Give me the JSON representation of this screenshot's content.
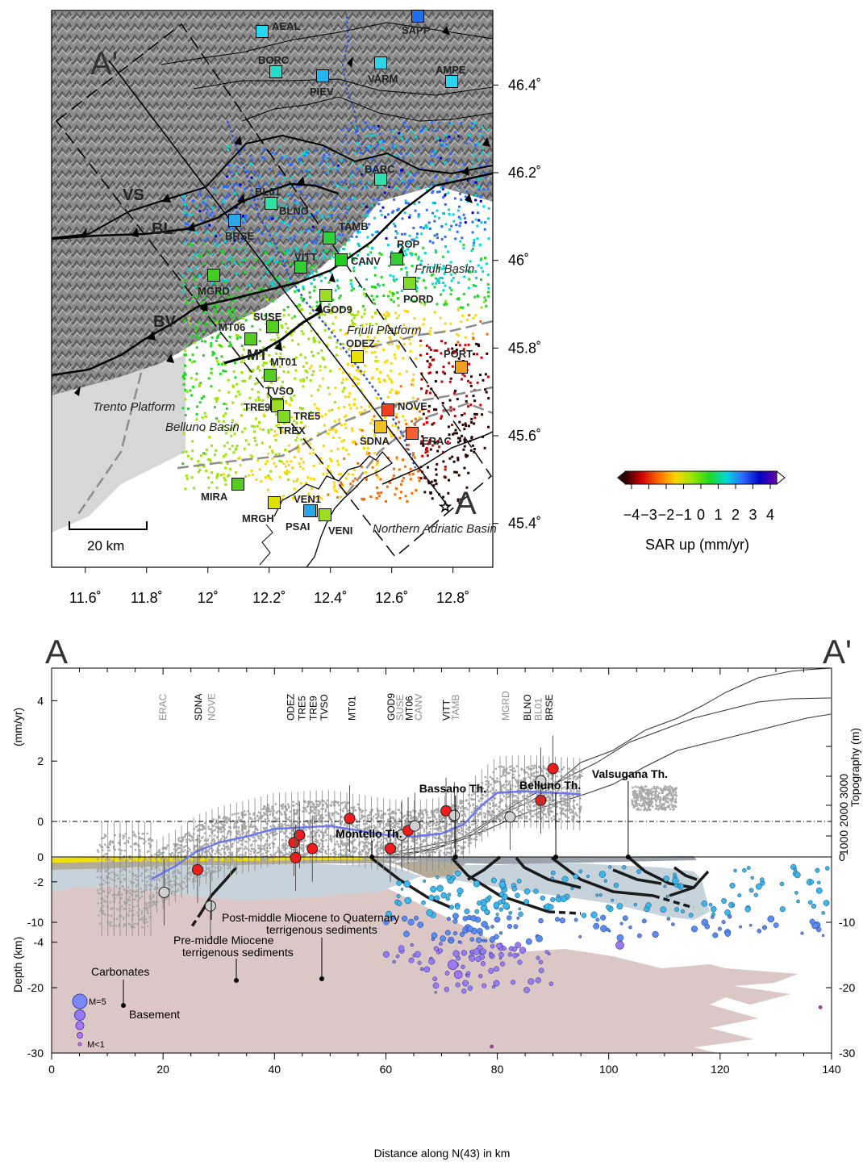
{
  "chart_data": [
    {
      "type": "scatter",
      "panel": "map",
      "x_ticks": [
        "11.6˚",
        "11.8˚",
        "12˚",
        "12.2˚",
        "12.4˚",
        "12.6˚",
        "12.8˚"
      ],
      "x_tick_values": [
        11.6,
        11.8,
        12.0,
        12.2,
        12.4,
        12.6,
        12.8
      ],
      "y_ticks": [
        "46.4˚",
        "46.2˚",
        "46˚",
        "45.8˚",
        "45.6˚",
        "45.4˚"
      ],
      "y_tick_values": [
        46.4,
        46.2,
        46.0,
        45.8,
        45.6,
        45.4
      ],
      "xlim": [
        11.49,
        12.93
      ],
      "ylim": [
        45.3,
        46.57
      ],
      "scale_bar": "20 km",
      "profile_ends": [
        "A'",
        "A"
      ],
      "colorbar": {
        "ticks": [
          "−4",
          "−3",
          "−2",
          "−1",
          "0",
          "1",
          "2",
          "3",
          "4"
        ],
        "label": "SAR up (mm/yr)",
        "colors": [
          "#2b0000",
          "#d10000",
          "#ff6a00",
          "#ffd500",
          "#99e600",
          "#1fd81f",
          "#00d8d8",
          "#2f6bff",
          "#0000c8",
          "#6a00a8"
        ]
      },
      "fault_labels": [
        "VS",
        "BL",
        "BV",
        "MT"
      ],
      "region_labels": [
        "Trento Platform",
        "Belluno Basin",
        "Friuli Platform",
        "Friuli Basin",
        "Northern Adriatic Basin"
      ],
      "stations": [
        {
          "name": "AEAL",
          "x": 12.19,
          "y": 46.53,
          "color": "#25d8f0"
        },
        {
          "name": "SAPP",
          "x": 12.7,
          "y": 46.56,
          "color": "#1f6fe8"
        },
        {
          "name": "BORC",
          "x": 12.24,
          "y": 46.44,
          "color": "#2bd9c9"
        },
        {
          "name": "VARM",
          "x": 12.57,
          "y": 46.46,
          "color": "#2bd5e6"
        },
        {
          "name": "PIEV",
          "x": 12.39,
          "y": 46.43,
          "color": "#22b7f0"
        },
        {
          "name": "AMPE",
          "x": 12.8,
          "y": 46.42,
          "color": "#2bd5f0"
        },
        {
          "name": "BARC",
          "x": 12.57,
          "y": 46.19,
          "color": "#2ee0b0"
        },
        {
          "name": "BL01",
          "x": 12.23,
          "y": 46.14,
          "color": "#2fe0a5"
        },
        {
          "name": "BLNO",
          "x": 12.23,
          "y": 46.14,
          "color": "#2fe0a5"
        },
        {
          "name": "BRSE",
          "x": 12.09,
          "y": 46.1,
          "color": "#2ba6e8"
        },
        {
          "name": "TAMB",
          "x": 12.4,
          "y": 46.06,
          "color": "#2ed13a"
        },
        {
          "name": "ROP",
          "x": 12.62,
          "y": 46.01,
          "color": "#33cc33"
        },
        {
          "name": "VITT",
          "x": 12.3,
          "y": 45.99,
          "color": "#33cc33"
        },
        {
          "name": "CANV",
          "x": 12.44,
          "y": 46.01,
          "color": "#22cc22"
        },
        {
          "name": "MGRD",
          "x": 12.02,
          "y": 45.97,
          "color": "#44cc22"
        },
        {
          "name": "PORD",
          "x": 12.67,
          "y": 45.96,
          "color": "#7fdc22"
        },
        {
          "name": "GOD9",
          "x": 12.37,
          "y": 45.93,
          "color": "#9bdc22"
        },
        {
          "name": "SUSE",
          "x": 12.22,
          "y": 45.86,
          "color": "#55cc22"
        },
        {
          "name": "MT06",
          "x": 12.14,
          "y": 45.83,
          "color": "#55cc22"
        },
        {
          "name": "ODEZ",
          "x": 12.49,
          "y": 45.79,
          "color": "#e8e000"
        },
        {
          "name": "PORT",
          "x": 12.84,
          "y": 45.77,
          "color": "#f0a020"
        },
        {
          "name": "MT01",
          "x": 12.21,
          "y": 45.75,
          "color": "#55cc22"
        },
        {
          "name": "TVSO",
          "x": 12.23,
          "y": 45.68,
          "color": "#b0e000"
        },
        {
          "name": "TRE5",
          "x": 12.24,
          "y": 45.67,
          "color": "#7fdc22"
        },
        {
          "name": "TRE9",
          "x": 12.22,
          "y": 45.67,
          "color": "#9edc22"
        },
        {
          "name": "TREX",
          "x": 12.25,
          "y": 45.65,
          "color": "#7fdc22"
        },
        {
          "name": "NOVE",
          "x": 12.59,
          "y": 45.67,
          "color": "#f04020"
        },
        {
          "name": "SDNA",
          "x": 12.58,
          "y": 45.63,
          "color": "#f0c020"
        },
        {
          "name": "ERAC",
          "x": 12.67,
          "y": 45.62,
          "color": "#f06030"
        },
        {
          "name": "MIRA",
          "x": 12.1,
          "y": 45.49,
          "color": "#55cc22"
        },
        {
          "name": "VEN1",
          "x": 12.35,
          "y": 45.43,
          "color": "#f0c020"
        },
        {
          "name": "MRGH",
          "x": 12.22,
          "y": 45.46,
          "color": "#e0e000"
        },
        {
          "name": "PSAI",
          "x": 12.33,
          "y": 45.44,
          "color": "#2ba6e8"
        },
        {
          "name": "VENI",
          "x": 12.37,
          "y": 45.43,
          "color": "#9edc22"
        }
      ]
    },
    {
      "type": "line",
      "panel": "profile",
      "profile_ends": [
        "A",
        "A'"
      ],
      "xlabel": "Distance along N(43) in km",
      "ylabel_top": "(mm/yr)",
      "ylabel_bottom": "Depth (km)",
      "ylabel_right": "Topography (m)",
      "xlim": [
        0,
        140
      ],
      "x_ticks": [
        0,
        20,
        40,
        60,
        80,
        100,
        120,
        140
      ],
      "y_ticks_velocity": [
        4,
        2,
        0,
        -2,
        -4
      ],
      "ylim_velocity": [
        -4.9,
        5
      ],
      "y_ticks_depth": [
        0,
        -10,
        -20,
        -30
      ],
      "ylim_depth": [
        -30,
        0
      ],
      "topo_tick_labels": [
        "1000",
        "2000",
        "3000",
        "0"
      ],
      "mean_velocity_line": {
        "x": [
          18,
          22,
          26,
          30,
          35,
          40,
          45,
          50,
          55,
          60,
          65,
          70,
          74,
          77,
          80,
          85,
          90,
          95
        ],
        "y": [
          -1.9,
          -1.5,
          -1.0,
          -0.7,
          -0.5,
          -0.25,
          -0.2,
          -0.15,
          -0.3,
          -0.45,
          -0.5,
          -0.4,
          -0.1,
          0.5,
          0.95,
          1.0,
          0.95,
          0.9
        ]
      },
      "gps_points": [
        {
          "name": "ERAC",
          "x": 20.2,
          "y": -2.35,
          "type": "hollow"
        },
        {
          "name": "SDNA",
          "x": 26.2,
          "y": -1.6,
          "type": "red"
        },
        {
          "name": "NOVE",
          "x": 28.5,
          "y": -2.8,
          "type": "hollow"
        },
        {
          "name": "ODEZ",
          "x": 43.5,
          "y": -0.7,
          "type": "red"
        },
        {
          "name": "TRE5",
          "x": 44.5,
          "y": -0.45,
          "type": "red"
        },
        {
          "name": "TRE9",
          "x": 43.8,
          "y": -1.2,
          "type": "red"
        },
        {
          "name": "TVSO",
          "x": 46.8,
          "y": -0.9,
          "type": "red"
        },
        {
          "name": "MT01",
          "x": 53.5,
          "y": 0.1,
          "type": "red"
        },
        {
          "name": "GOD9",
          "x": 60.8,
          "y": -0.9,
          "type": "red"
        },
        {
          "name": "SUSE",
          "x": 62.8,
          "y": -0.45,
          "type": "hollow"
        },
        {
          "name": "MT06",
          "x": 64.0,
          "y": -0.3,
          "type": "red"
        },
        {
          "name": "CANV",
          "x": 65.2,
          "y": -0.15,
          "type": "hollow"
        },
        {
          "name": "VITT",
          "x": 70.8,
          "y": 0.35,
          "type": "red"
        },
        {
          "name": "TAMB",
          "x": 72.3,
          "y": 0.2,
          "type": "hollow"
        },
        {
          "name": "MGRD",
          "x": 82.3,
          "y": 0.15,
          "type": "hollow"
        },
        {
          "name": "BLNO",
          "x": 87.8,
          "y": 0.7,
          "type": "red"
        },
        {
          "name": "BL01",
          "x": 87.8,
          "y": 1.35,
          "type": "hollow"
        },
        {
          "name": "BRSE",
          "x": 90.0,
          "y": 1.75,
          "type": "red"
        }
      ],
      "station_labels": [
        {
          "name": "ERAC",
          "x": 19.8,
          "color": "#8c8c8c"
        },
        {
          "name": "SDNA",
          "x": 26.2,
          "color": "#000000"
        },
        {
          "name": "NOVE",
          "x": 28.6,
          "color": "#8c8c8c"
        },
        {
          "name": "ODEZ",
          "x": 42.8,
          "color": "#000000"
        },
        {
          "name": "TRE5",
          "x": 44.8,
          "color": "#000000"
        },
        {
          "name": "TRE9",
          "x": 46.8,
          "color": "#000000"
        },
        {
          "name": "TVSO",
          "x": 48.8,
          "color": "#000000"
        },
        {
          "name": "MT01",
          "x": 53.8,
          "color": "#000000"
        },
        {
          "name": "GOD9",
          "x": 60.8,
          "color": "#000000"
        },
        {
          "name": "SUSE",
          "x": 62.4,
          "color": "#8c8c8c"
        },
        {
          "name": "MT06",
          "x": 64.1,
          "color": "#000000"
        },
        {
          "name": "CANV",
          "x": 65.7,
          "color": "#8c8c8c"
        },
        {
          "name": "VITT",
          "x": 70.7,
          "color": "#000000"
        },
        {
          "name": "TAMB",
          "x": 72.4,
          "color": "#8c8c8c"
        },
        {
          "name": "MGRD",
          "x": 81.4,
          "color": "#8c8c8c"
        },
        {
          "name": "BLNO",
          "x": 85.3,
          "color": "#000000"
        },
        {
          "name": "BL01",
          "x": 87.2,
          "color": "#8c8c8c"
        },
        {
          "name": "BRSE",
          "x": 89.2,
          "color": "#000000"
        }
      ],
      "thrust_labels": [
        {
          "name": "Montello Th.",
          "x": 57.5
        },
        {
          "name": "Bassano Th.",
          "x": 72.5
        },
        {
          "name": "Belluno Th.",
          "x": 90.5
        },
        {
          "name": "Valsugana Th.",
          "x": 103.5
        }
      ],
      "unit_labels": [
        "Post-middle Miocene to Quaternary",
        "terrigenous sediments",
        "Pre-middle Miocene",
        "terrigenous sediments",
        "Carbonates",
        "Basement"
      ],
      "magnitude_legend": [
        "M=5",
        "M<1"
      ]
    }
  ]
}
